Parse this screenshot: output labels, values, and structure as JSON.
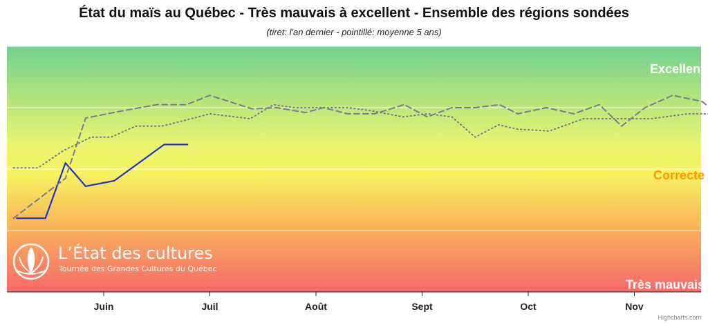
{
  "chart_data": {
    "type": "line",
    "title": "État du maïs au Québec - Très mauvais à excellent - Ensemble des régions sondées",
    "subtitle": "(tiret: l'an dernier - pointillé: moyenne 5 ans)",
    "x_ticks": [
      "Juin",
      "Juil",
      "Août",
      "Sept",
      "Oct",
      "Nov"
    ],
    "y_range": [
      0,
      4
    ],
    "band_labels": [
      {
        "text": "Excellent",
        "y": 3.63,
        "color": "#ffffff"
      },
      {
        "text": "Correcte",
        "y": 1.9,
        "color": "#ff9800"
      },
      {
        "text": "Très mauvais",
        "y": 0.12,
        "color": "#ffffff"
      }
    ],
    "gridlines_y": [
      1,
      2,
      3
    ],
    "marker_x": 6.3,
    "series": [
      {
        "style": "solid",
        "color": "#1f2fd0",
        "x": [
          -0.82,
          -0.55,
          -0.36,
          -0.17,
          0.1,
          0.57,
          0.79
        ],
        "y": [
          1.2,
          1.2,
          2.1,
          1.72,
          1.81,
          2.4,
          2.4
        ]
      },
      {
        "style": "dashed",
        "color": "#7a7a90",
        "x": [
          -0.85,
          -0.36,
          -0.17,
          0.12,
          0.5,
          0.78,
          1.0,
          1.4,
          1.63,
          1.9,
          2.07,
          2.3,
          2.55,
          2.65,
          2.83,
          3.05,
          3.28,
          3.5,
          3.73,
          3.9,
          4.17,
          4.43,
          4.67,
          4.88,
          5.1,
          5.36,
          5.64,
          6.1,
          6.32
        ],
        "y": [
          1.2,
          1.85,
          2.83,
          2.93,
          3.05,
          3.05,
          3.2,
          2.98,
          3.0,
          2.92,
          3.0,
          2.9,
          2.9,
          2.95,
          3.05,
          2.85,
          3.0,
          3.0,
          3.05,
          2.9,
          3.0,
          2.9,
          3.05,
          2.7,
          3.0,
          3.2,
          3.1,
          2.45,
          2.0
        ]
      },
      {
        "style": "dotted",
        "color": "#7a7a90",
        "x": [
          -0.85,
          -0.62,
          -0.38,
          -0.12,
          0.07,
          0.3,
          0.55,
          0.78,
          1.0,
          1.38,
          1.6,
          1.8,
          2.07,
          2.3,
          2.52,
          2.67,
          2.82,
          3.05,
          3.28,
          3.5,
          3.72,
          3.9,
          4.2,
          4.52,
          4.9,
          5.16,
          5.5,
          6.1,
          6.32,
          6.6,
          7.0
        ],
        "y": [
          2.02,
          2.02,
          2.3,
          2.52,
          2.52,
          2.7,
          2.7,
          2.8,
          2.9,
          2.82,
          3.05,
          3.0,
          3.0,
          3.0,
          2.95,
          2.9,
          2.85,
          2.9,
          2.85,
          2.52,
          2.72,
          2.65,
          2.62,
          2.82,
          2.82,
          2.82,
          2.9,
          2.9,
          2.62,
          2.37,
          2.5
        ]
      }
    ]
  },
  "logo": {
    "title": "L’État des cultures",
    "subtitle": "Tournée des Grandes Cultures du Québec"
  },
  "credits": "Highcharts.com",
  "colors": {
    "gradient_top": "#73d18f",
    "gradient_upper_mid": "#e9f56f",
    "gradient_mid": "#f7f261",
    "gradient_lower_mid": "#f8b85a",
    "gradient_bottom": "#f7696a"
  }
}
